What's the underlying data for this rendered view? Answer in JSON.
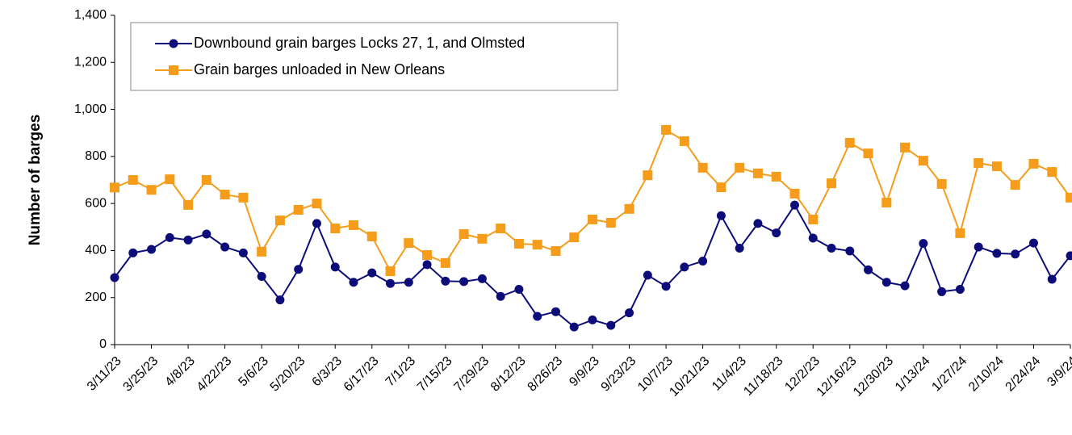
{
  "chart_data": {
    "type": "line",
    "y_label": "Number of  barges",
    "categories": [
      "3/11/23",
      null,
      "3/25/23",
      null,
      "4/8/23",
      null,
      "4/22/23",
      null,
      "5/6/23",
      null,
      "5/20/23",
      null,
      "6/3/23",
      null,
      "6/17/23",
      null,
      "7/1/23",
      null,
      "7/15/23",
      null,
      "7/29/23",
      null,
      "8/12/23",
      null,
      "8/26/23",
      null,
      "9/9/23",
      null,
      "9/23/23",
      null,
      "10/7/23",
      null,
      "10/21/23",
      null,
      "11/4/23",
      null,
      "11/18/23",
      null,
      "12/2/23",
      null,
      "12/16/23",
      null,
      "12/30/23",
      null,
      "1/13/24",
      null,
      "1/27/24",
      null,
      "2/10/24",
      null,
      "2/24/24",
      null,
      "3/9/24"
    ],
    "series": [
      {
        "name": "Downbound grain barges Locks 27, 1, and Olmsted",
        "color": "#0d0d7a",
        "marker": "circle",
        "values": [
          285,
          390,
          405,
          455,
          445,
          470,
          415,
          390,
          290,
          190,
          320,
          515,
          330,
          265,
          305,
          260,
          265,
          340,
          270,
          268,
          280,
          205,
          235,
          120,
          140,
          75,
          105,
          82,
          135,
          295,
          248,
          330,
          355,
          548,
          410,
          515,
          475,
          593,
          453,
          410,
          398,
          318,
          265,
          250,
          430,
          225,
          235,
          415,
          388,
          385,
          432,
          278,
          378
        ]
      },
      {
        "name": "Grain barges unloaded in New Orleans",
        "color": "#f59c1a",
        "marker": "square",
        "values": [
          668,
          700,
          658,
          703,
          594,
          700,
          638,
          625,
          395,
          528,
          573,
          600,
          494,
          508,
          460,
          312,
          432,
          381,
          347,
          470,
          450,
          494,
          429,
          425,
          398,
          456,
          532,
          518,
          577,
          720,
          913,
          865,
          752,
          669,
          752,
          728,
          714,
          642,
          532,
          686,
          858,
          813,
          604,
          838,
          782,
          683,
          474,
          772,
          758,
          679,
          769,
          734,
          625
        ]
      }
    ],
    "ylim": [
      0,
      1400
    ],
    "yticks": [
      0,
      200,
      400,
      600,
      800,
      {
        "value": 1000,
        "label": "1,000"
      },
      {
        "value": 1200,
        "label": "1,200"
      },
      {
        "value": 1400,
        "label": "1,400"
      }
    ],
    "grid": false,
    "legend": "upper left"
  }
}
